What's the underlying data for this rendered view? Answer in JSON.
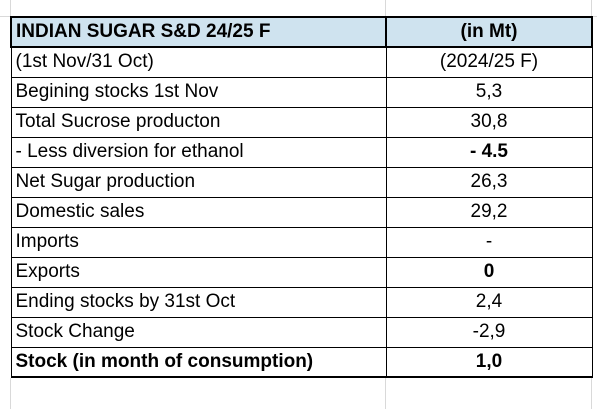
{
  "table": {
    "header": {
      "title": "INDIAN SUGAR S&D 24/25 F",
      "unit": "(in Mt)"
    },
    "rows": [
      {
        "label": "(1st Nov/31 Oct)",
        "value": "(2024/25 F)"
      },
      {
        "label": "Begining stocks 1st Nov",
        "value": "5,3"
      },
      {
        "label": "Total Sucrose producton",
        "value": "30,8"
      },
      {
        "label": "-  Less diversion for ethanol",
        "value": "- 4.5"
      },
      {
        "label": "Net Sugar production",
        "value": "26,3"
      },
      {
        "label": "Domestic sales",
        "value": "29,2"
      },
      {
        "label": "Imports",
        "value": "-"
      },
      {
        "label": "Exports",
        "value": "0"
      },
      {
        "label": "Ending stocks by 31st Oct",
        "value": "2,4"
      },
      {
        "label": "Stock Change",
        "value": "-2,9"
      },
      {
        "label": "Stock (in month of consumption)",
        "value": "1,0"
      }
    ]
  },
  "colors": {
    "header_fill": "#cfe3ef",
    "highlight_red": "#ff0000",
    "gridline": "#d9d9d9"
  }
}
